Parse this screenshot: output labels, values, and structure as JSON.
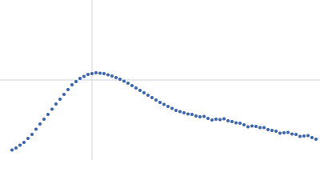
{
  "chart_data": {
    "type": "scatter",
    "color": "#3a64b3",
    "grid": true,
    "xlim": [
      0,
      400
    ],
    "ylim": [
      0,
      200
    ],
    "xticks": [
      115
    ],
    "yticks": [
      100
    ],
    "x": [
      15,
      20,
      25,
      30,
      35,
      40,
      45,
      50,
      55,
      60,
      65,
      70,
      75,
      80,
      85,
      90,
      95,
      100,
      105,
      110,
      115,
      120,
      125,
      130,
      135,
      140,
      145,
      150,
      155,
      160,
      165,
      170,
      175,
      180,
      185,
      190,
      195,
      200,
      205,
      210,
      215,
      220,
      225,
      230,
      235,
      240,
      245,
      250,
      255,
      260,
      265,
      270,
      275,
      280,
      285,
      290,
      295,
      300,
      305,
      310,
      315,
      320,
      325,
      330,
      335,
      340,
      345,
      350,
      355,
      360,
      365,
      370,
      375,
      380,
      385,
      390,
      395
    ],
    "values": [
      12.5,
      15,
      18.5,
      22,
      27,
      32,
      38.5,
      45,
      51,
      57,
      63.5,
      70,
      76,
      82,
      88,
      94,
      98,
      102,
      104.5,
      107,
      108,
      109,
      108.5,
      108,
      106.5,
      105,
      103,
      101,
      98.5,
      96,
      93,
      90,
      87,
      84,
      81,
      78,
      75,
      72,
      69.5,
      67,
      64.5,
      62,
      60.5,
      59,
      57.5,
      57,
      55,
      54,
      54.5,
      52,
      50,
      51,
      50.5,
      51.5,
      49,
      48,
      46.5,
      46,
      44,
      41.5,
      42.5,
      42,
      40.5,
      40.5,
      38,
      37,
      36,
      33.5,
      34,
      34.5,
      32.5,
      32,
      29.5,
      30,
      30.5,
      28,
      26
    ]
  }
}
